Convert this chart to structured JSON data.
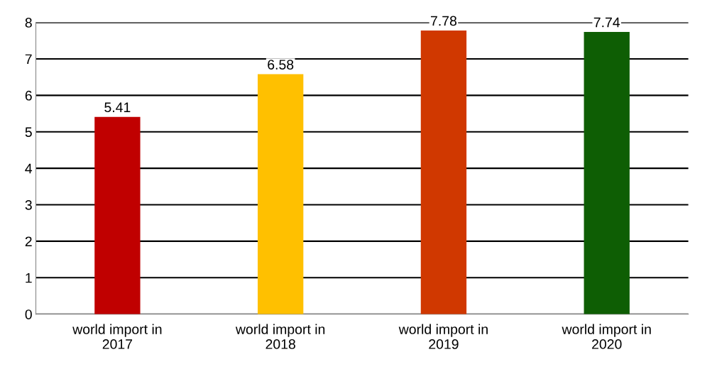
{
  "chart_data": {
    "type": "bar",
    "categories": [
      "world import in\n2017",
      "world import in\n2018",
      "world import in\n2019",
      "world import in\n2020"
    ],
    "values": [
      5.41,
      6.58,
      7.78,
      7.74
    ],
    "colors": [
      "#c00000",
      "#ffc000",
      "#d03800",
      "#0e5e04"
    ],
    "ylim": [
      0,
      8
    ],
    "yticks": [
      0,
      1,
      2,
      3,
      4,
      5,
      6,
      7,
      8
    ],
    "grid": "y",
    "data_labels": true
  }
}
